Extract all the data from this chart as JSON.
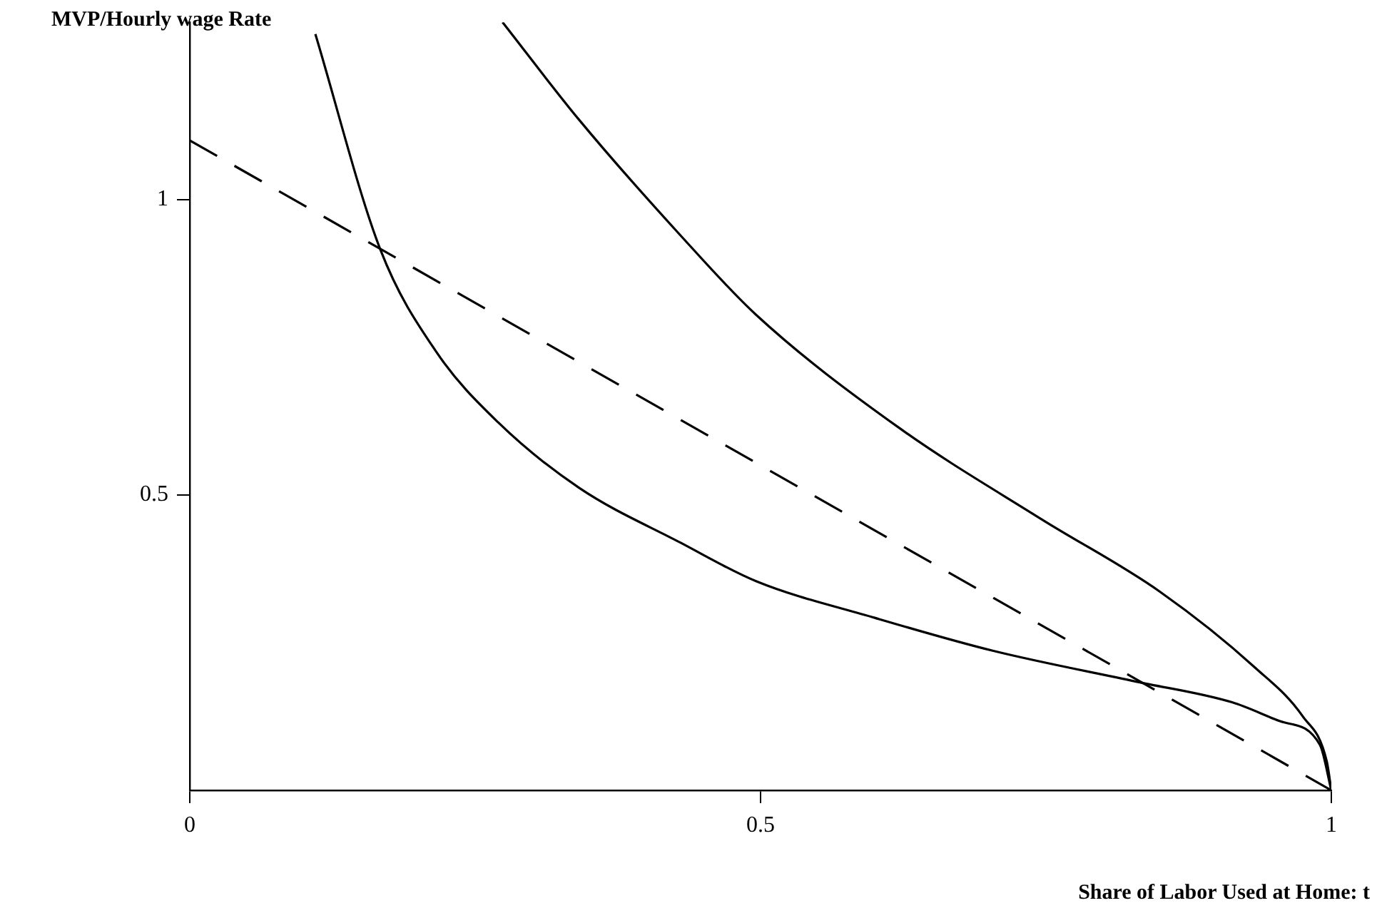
{
  "chart_data": {
    "type": "line",
    "xlabel": "Share of Labor Used at Home: t",
    "ylabel": "MVP/Hourly wage Rate",
    "xlim": [
      0,
      1
    ],
    "ylim": [
      0,
      1.3
    ],
    "xticks": [
      0,
      0.5,
      1
    ],
    "yticks": [
      0.5,
      1
    ],
    "grid": false,
    "legend": false,
    "marker": "none",
    "series": [
      {
        "color": "#000000",
        "line_style": "dashed",
        "x": [
          0,
          1
        ],
        "values": [
          1.1,
          0
        ]
      },
      {
        "color": "#000000",
        "line_style": "solid",
        "x": [
          0.11,
          0.167,
          0.216,
          0.27,
          0.341,
          0.43,
          0.496,
          0.6,
          0.704,
          0.829,
          0.913,
          0.955,
          0.99,
          1
        ],
        "values": [
          1.28,
          0.915,
          0.742,
          0.623,
          0.512,
          0.419,
          0.354,
          0.292,
          0.236,
          0.184,
          0.149,
          0.117,
          0.077,
          0
        ]
      },
      {
        "color": "#000000",
        "line_style": "solid",
        "x": [
          0.274,
          0.341,
          0.43,
          0.496,
          0.621,
          0.746,
          0.85,
          0.933,
          0.975,
          0.996,
          1
        ],
        "values": [
          1.3,
          1.135,
          0.939,
          0.805,
          0.614,
          0.459,
          0.336,
          0.208,
          0.125,
          0.049,
          0
        ]
      }
    ]
  }
}
